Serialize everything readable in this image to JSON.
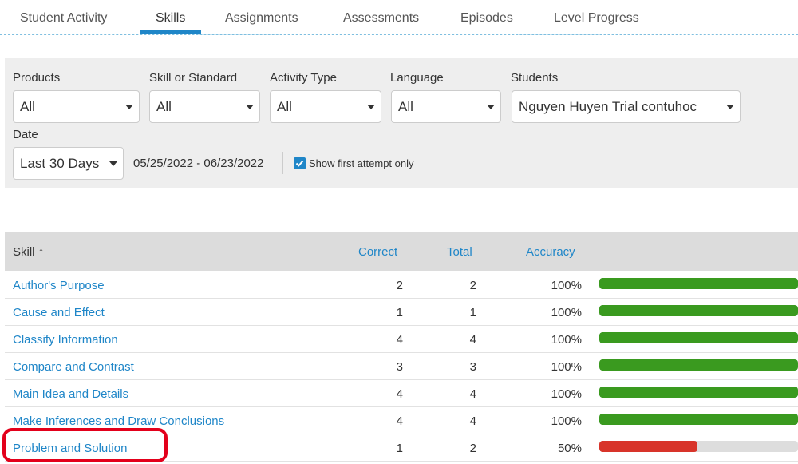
{
  "tabs": [
    {
      "label": "Student Activity",
      "active": false
    },
    {
      "label": "Skills",
      "active": true
    },
    {
      "label": "Assignments",
      "active": false
    },
    {
      "label": "Assessments",
      "active": false
    },
    {
      "label": "Episodes",
      "active": false
    },
    {
      "label": "Level Progress",
      "active": false
    }
  ],
  "filters": {
    "products": {
      "label": "Products",
      "value": "All"
    },
    "skill": {
      "label": "Skill or Standard",
      "value": "All"
    },
    "activity_type": {
      "label": "Activity Type",
      "value": "All"
    },
    "language": {
      "label": "Language",
      "value": "All"
    },
    "students": {
      "label": "Students",
      "value": "Nguyen Huyen Trial contuhoc"
    },
    "date": {
      "label": "Date",
      "value": "Last 30 Days",
      "range": "05/25/2022 - 06/23/2022"
    },
    "first_attempt": {
      "label": "Show first attempt only",
      "checked": true
    }
  },
  "table": {
    "headers": {
      "skill": "Skill",
      "sort_icon": "↑",
      "correct": "Correct",
      "total": "Total",
      "accuracy": "Accuracy"
    },
    "rows": [
      {
        "skill": "Author's Purpose",
        "correct": "2",
        "total": "2",
        "accuracy": "100%",
        "fraction": 1.0,
        "color": "#3a9a1f"
      },
      {
        "skill": "Cause and Effect",
        "correct": "1",
        "total": "1",
        "accuracy": "100%",
        "fraction": 1.0,
        "color": "#3a9a1f"
      },
      {
        "skill": "Classify Information",
        "correct": "4",
        "total": "4",
        "accuracy": "100%",
        "fraction": 1.0,
        "color": "#3a9a1f"
      },
      {
        "skill": "Compare and Contrast",
        "correct": "3",
        "total": "3",
        "accuracy": "100%",
        "fraction": 1.0,
        "color": "#3a9a1f"
      },
      {
        "skill": "Main Idea and Details",
        "correct": "4",
        "total": "4",
        "accuracy": "100%",
        "fraction": 1.0,
        "color": "#3a9a1f"
      },
      {
        "skill": "Make Inferences and Draw Conclusions",
        "correct": "4",
        "total": "4",
        "accuracy": "100%",
        "fraction": 1.0,
        "color": "#3a9a1f"
      },
      {
        "skill": "Problem and Solution",
        "correct": "1",
        "total": "2",
        "accuracy": "50%",
        "fraction": 0.5,
        "color": "#d8342a"
      }
    ]
  },
  "colors": {
    "accent": "#1f86c8",
    "success": "#3a9a1f",
    "danger": "#d8342a",
    "highlight": "#e3001b"
  }
}
